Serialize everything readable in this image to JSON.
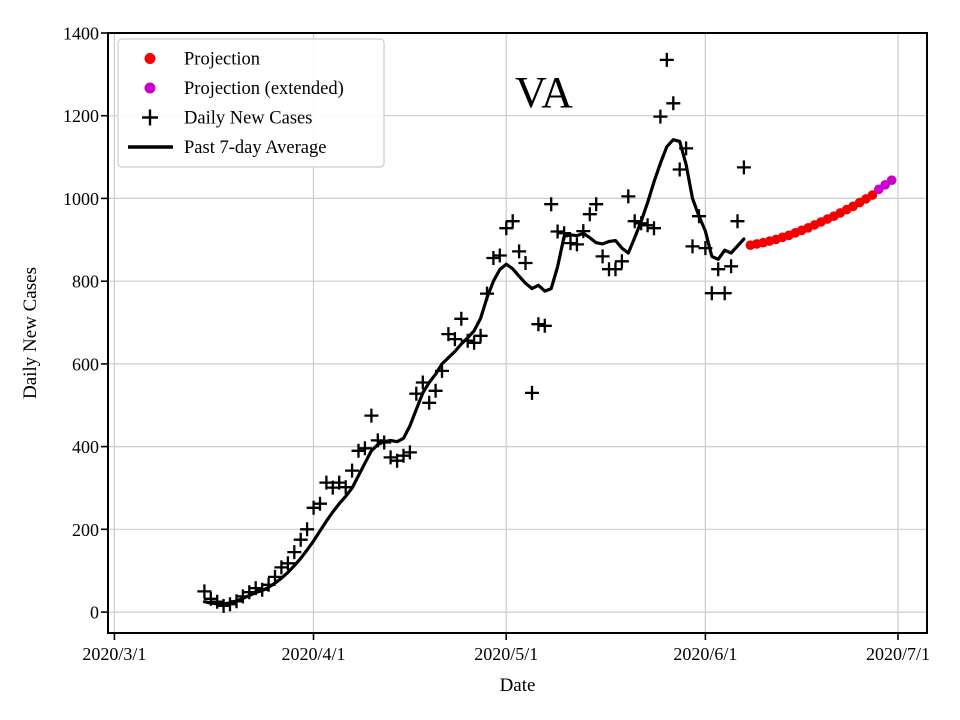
{
  "figure": {
    "title": "VA",
    "xlabel": "Date",
    "ylabel": "Daily New Cases"
  },
  "legend": {
    "position": "upper left",
    "entries": [
      {
        "label": "Projection",
        "marker": "circle",
        "color": "#f40000"
      },
      {
        "label": "Projection (extended)",
        "marker": "circle",
        "color": "#cc00cc"
      },
      {
        "label": "Daily New Cases",
        "marker": "plus",
        "color": "#000000"
      },
      {
        "label": "Past 7-day Average",
        "marker": "line",
        "color": "#000000"
      }
    ]
  },
  "chart_data": {
    "type": "scatter",
    "title": "VA",
    "xlabel": "Date",
    "ylabel": "Daily New Cases",
    "grid": true,
    "background": "#ffffff",
    "grid_color": "#cccccc",
    "y_ticks": [
      0,
      200,
      400,
      600,
      800,
      1000,
      1200,
      1400
    ],
    "y_tick_labels": [
      "0",
      "200",
      "400",
      "600",
      "800",
      "1000",
      "1200",
      "1400"
    ],
    "x_tick_labels": [
      "2020/3/1",
      "2020/4/1",
      "2020/5/1",
      "2020/6/1",
      "2020/7/1"
    ],
    "ylim": [
      -50.6,
      1400
    ],
    "xlim_days_from_2020_3_1": [
      -1,
      126.5
    ],
    "series": [
      {
        "name": "Projection",
        "type": "scatter",
        "marker": "circle",
        "color": "#f40000",
        "points": [
          [
            "2020/6/8",
            887
          ],
          [
            "2020/6/9",
            890
          ],
          [
            "2020/6/10",
            893
          ],
          [
            "2020/6/11",
            897
          ],
          [
            "2020/6/12",
            901
          ],
          [
            "2020/6/13",
            906
          ],
          [
            "2020/6/14",
            911
          ],
          [
            "2020/6/15",
            917
          ],
          [
            "2020/6/16",
            923
          ],
          [
            "2020/6/17",
            929
          ],
          [
            "2020/6/18",
            936
          ],
          [
            "2020/6/19",
            943
          ],
          [
            "2020/6/20",
            950
          ],
          [
            "2020/6/21",
            957
          ],
          [
            "2020/6/22",
            965
          ],
          [
            "2020/6/23",
            973
          ],
          [
            "2020/6/24",
            981
          ],
          [
            "2020/6/25",
            990
          ],
          [
            "2020/6/26",
            999
          ],
          [
            "2020/6/27",
            1008
          ]
        ]
      },
      {
        "name": "Projection (extended)",
        "type": "scatter",
        "marker": "circle",
        "color": "#cc00cc",
        "points": [
          [
            "2020/6/28",
            1022
          ],
          [
            "2020/6/29",
            1033
          ],
          [
            "2020/6/30",
            1044
          ]
        ]
      },
      {
        "name": "Daily New Cases",
        "type": "scatter",
        "marker": "plus",
        "color": "#000000",
        "points": [
          [
            "2020/3/15",
            50
          ],
          [
            "2020/3/16",
            32
          ],
          [
            "2020/3/17",
            25
          ],
          [
            "2020/3/18",
            15
          ],
          [
            "2020/3/19",
            19
          ],
          [
            "2020/3/20",
            26
          ],
          [
            "2020/3/21",
            38
          ],
          [
            "2020/3/22",
            48
          ],
          [
            "2020/3/23",
            58
          ],
          [
            "2020/3/24",
            54
          ],
          [
            "2020/3/25",
            66
          ],
          [
            "2020/3/26",
            85
          ],
          [
            "2020/3/27",
            108
          ],
          [
            "2020/3/28",
            118
          ],
          [
            "2020/3/29",
            145
          ],
          [
            "2020/3/30",
            175
          ],
          [
            "2020/3/31",
            200
          ],
          [
            "2020/4/1",
            252
          ],
          [
            "2020/4/2",
            262
          ],
          [
            "2020/4/3",
            313
          ],
          [
            "2020/4/4",
            301
          ],
          [
            "2020/4/5",
            313
          ],
          [
            "2020/4/6",
            302
          ],
          [
            "2020/4/7",
            342
          ],
          [
            "2020/4/8",
            390
          ],
          [
            "2020/4/9",
            396
          ],
          [
            "2020/4/10",
            475
          ],
          [
            "2020/4/11",
            415
          ],
          [
            "2020/4/12",
            410
          ],
          [
            "2020/4/13",
            374
          ],
          [
            "2020/4/14",
            366
          ],
          [
            "2020/4/15",
            378
          ],
          [
            "2020/4/16",
            386
          ],
          [
            "2020/4/17",
            528
          ],
          [
            "2020/4/18",
            555
          ],
          [
            "2020/4/19",
            506
          ],
          [
            "2020/4/20",
            535
          ],
          [
            "2020/4/21",
            583
          ],
          [
            "2020/4/22",
            672
          ],
          [
            "2020/4/23",
            660
          ],
          [
            "2020/4/24",
            709
          ],
          [
            "2020/4/25",
            656
          ],
          [
            "2020/4/26",
            651
          ],
          [
            "2020/4/27",
            668
          ],
          [
            "2020/4/28",
            770
          ],
          [
            "2020/4/29",
            856
          ],
          [
            "2020/4/30",
            862
          ],
          [
            "2020/5/1",
            928
          ],
          [
            "2020/5/2",
            945
          ],
          [
            "2020/5/3",
            872
          ],
          [
            "2020/5/4",
            844
          ],
          [
            "2020/5/5",
            530
          ],
          [
            "2020/5/6",
            696
          ],
          [
            "2020/5/7",
            692
          ],
          [
            "2020/5/8",
            986
          ],
          [
            "2020/5/9",
            920
          ],
          [
            "2020/5/10",
            916
          ],
          [
            "2020/5/11",
            892
          ],
          [
            "2020/5/12",
            889
          ],
          [
            "2020/5/13",
            921
          ],
          [
            "2020/5/14",
            962
          ],
          [
            "2020/5/15",
            986
          ],
          [
            "2020/5/16",
            860
          ],
          [
            "2020/5/17",
            829
          ],
          [
            "2020/5/18",
            829
          ],
          [
            "2020/5/19",
            848
          ],
          [
            "2020/5/20",
            1005
          ],
          [
            "2020/5/21",
            945
          ],
          [
            "2020/5/22",
            940
          ],
          [
            "2020/5/23",
            935
          ],
          [
            "2020/5/24",
            928
          ],
          [
            "2020/5/25",
            1198
          ],
          [
            "2020/5/26",
            1335
          ],
          [
            "2020/5/27",
            1230
          ],
          [
            "2020/5/28",
            1070
          ],
          [
            "2020/5/29",
            1121
          ],
          [
            "2020/5/30",
            884
          ],
          [
            "2020/5/31",
            957
          ],
          [
            "2020/6/1",
            880
          ],
          [
            "2020/6/2",
            771
          ],
          [
            "2020/6/3",
            829
          ],
          [
            "2020/6/4",
            771
          ],
          [
            "2020/6/5",
            836
          ],
          [
            "2020/6/6",
            945
          ],
          [
            "2020/6/7",
            1075
          ]
        ]
      },
      {
        "name": "Past 7-day Average",
        "type": "line",
        "color": "#000000",
        "points": [
          [
            "2020/3/15",
            25
          ],
          [
            "2020/3/16",
            22
          ],
          [
            "2020/3/17",
            20
          ],
          [
            "2020/3/18",
            20
          ],
          [
            "2020/3/19",
            22
          ],
          [
            "2020/3/20",
            27
          ],
          [
            "2020/3/21",
            33
          ],
          [
            "2020/3/22",
            40
          ],
          [
            "2020/3/23",
            47
          ],
          [
            "2020/3/24",
            52
          ],
          [
            "2020/3/25",
            60
          ],
          [
            "2020/3/26",
            70
          ],
          [
            "2020/3/27",
            82
          ],
          [
            "2020/3/28",
            96
          ],
          [
            "2020/3/29",
            112
          ],
          [
            "2020/3/30",
            130
          ],
          [
            "2020/3/31",
            150
          ],
          [
            "2020/4/1",
            172
          ],
          [
            "2020/4/2",
            196
          ],
          [
            "2020/4/3",
            220
          ],
          [
            "2020/4/4",
            242
          ],
          [
            "2020/4/5",
            262
          ],
          [
            "2020/4/6",
            280
          ],
          [
            "2020/4/7",
            300
          ],
          [
            "2020/4/8",
            330
          ],
          [
            "2020/4/9",
            360
          ],
          [
            "2020/4/10",
            390
          ],
          [
            "2020/4/11",
            405
          ],
          [
            "2020/4/12",
            412
          ],
          [
            "2020/4/13",
            415
          ],
          [
            "2020/4/14",
            412
          ],
          [
            "2020/4/15",
            420
          ],
          [
            "2020/4/16",
            450
          ],
          [
            "2020/4/17",
            490
          ],
          [
            "2020/4/18",
            530
          ],
          [
            "2020/4/19",
            555
          ],
          [
            "2020/4/20",
            575
          ],
          [
            "2020/4/21",
            600
          ],
          [
            "2020/4/22",
            615
          ],
          [
            "2020/4/23",
            630
          ],
          [
            "2020/4/24",
            648
          ],
          [
            "2020/4/25",
            663
          ],
          [
            "2020/4/26",
            680
          ],
          [
            "2020/4/27",
            710
          ],
          [
            "2020/4/28",
            760
          ],
          [
            "2020/4/29",
            800
          ],
          [
            "2020/4/30",
            828
          ],
          [
            "2020/5/1",
            841
          ],
          [
            "2020/5/2",
            830
          ],
          [
            "2020/5/3",
            812
          ],
          [
            "2020/5/4",
            795
          ],
          [
            "2020/5/5",
            782
          ],
          [
            "2020/5/6",
            790
          ],
          [
            "2020/5/7",
            776
          ],
          [
            "2020/5/8",
            782
          ],
          [
            "2020/5/9",
            835
          ],
          [
            "2020/5/10",
            908
          ],
          [
            "2020/5/11",
            912
          ],
          [
            "2020/5/12",
            910
          ],
          [
            "2020/5/13",
            916
          ],
          [
            "2020/5/14",
            905
          ],
          [
            "2020/5/15",
            893
          ],
          [
            "2020/5/16",
            890
          ],
          [
            "2020/5/17",
            896
          ],
          [
            "2020/5/18",
            898
          ],
          [
            "2020/5/19",
            880
          ],
          [
            "2020/5/20",
            868
          ],
          [
            "2020/5/21",
            905
          ],
          [
            "2020/5/22",
            945
          ],
          [
            "2020/5/23",
            990
          ],
          [
            "2020/5/24",
            1040
          ],
          [
            "2020/5/25",
            1085
          ],
          [
            "2020/5/26",
            1125
          ],
          [
            "2020/5/27",
            1142
          ],
          [
            "2020/5/28",
            1138
          ],
          [
            "2020/5/29",
            1082
          ],
          [
            "2020/5/30",
            1000
          ],
          [
            "2020/5/31",
            957
          ],
          [
            "2020/6/1",
            921
          ],
          [
            "2020/6/2",
            860
          ],
          [
            "2020/6/3",
            853
          ],
          [
            "2020/6/4",
            875
          ],
          [
            "2020/6/5",
            868
          ],
          [
            "2020/6/6",
            885
          ],
          [
            "2020/6/7",
            902
          ]
        ]
      }
    ]
  }
}
